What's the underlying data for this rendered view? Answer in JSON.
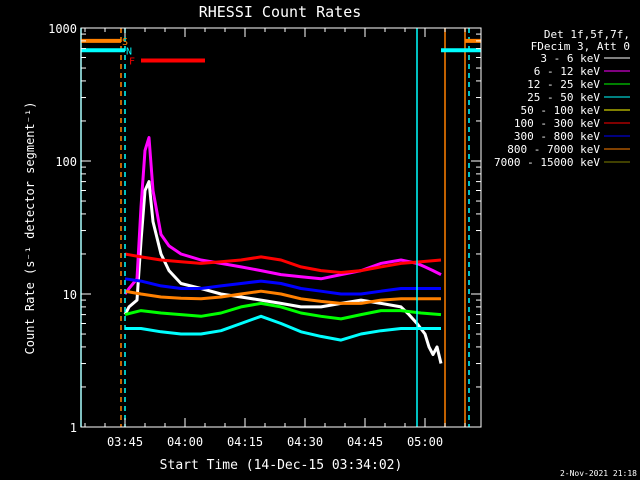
{
  "chart_data": {
    "type": "line",
    "title": "RHESSI Count Rates",
    "xlabel": "Start Time (14-Dec-15 03:34:02)",
    "ylabel": "Count Rate (s⁻¹ detector segment⁻¹)",
    "ylog": true,
    "ylim": [
      1,
      1000
    ],
    "xlim_minutes": [
      0,
      100
    ],
    "y_ticks": [
      "1",
      "10",
      "100",
      "1000"
    ],
    "x_ticks": [
      {
        "min": 11,
        "label": "03:45"
      },
      {
        "min": 26,
        "label": "04:00"
      },
      {
        "min": 41,
        "label": "04:15"
      },
      {
        "min": 56,
        "label": "04:30"
      },
      {
        "min": 71,
        "label": "04:45"
      },
      {
        "min": 86,
        "label": "05:00"
      }
    ],
    "legend_header": [
      "Det 1f,5f,7f,",
      "FDecim 3, Att 0"
    ],
    "series": [
      {
        "name": "3 - 6 keV",
        "color": "#ffffff",
        "x": [
          11,
          12,
          14,
          15,
          16,
          17,
          18,
          20,
          22,
          25,
          30,
          35,
          40,
          45,
          50,
          55,
          60,
          65,
          70,
          75,
          80,
          82,
          84,
          86,
          87,
          88,
          89,
          90
        ],
        "y": [
          7,
          8,
          9,
          25,
          60,
          70,
          35,
          20,
          15,
          12,
          11,
          10,
          9.5,
          9,
          8.5,
          8,
          8,
          8.5,
          9,
          8.5,
          8,
          7,
          6,
          5,
          4,
          3.5,
          4,
          3
        ]
      },
      {
        "name": "6 - 12 keV",
        "color": "#ff00ff",
        "x": [
          11,
          12,
          14,
          15,
          16,
          17,
          18,
          20,
          22,
          25,
          30,
          35,
          40,
          45,
          50,
          55,
          60,
          65,
          70,
          75,
          80,
          84,
          86,
          88,
          90
        ],
        "y": [
          10,
          11,
          13,
          45,
          120,
          150,
          60,
          28,
          23,
          20,
          18,
          17,
          16,
          15,
          14,
          13.5,
          13,
          14,
          15,
          17,
          18,
          17,
          16,
          15,
          14
        ]
      },
      {
        "name": "12 - 25 keV",
        "color": "#00ff00",
        "x": [
          11,
          15,
          20,
          25,
          30,
          35,
          40,
          45,
          50,
          55,
          60,
          65,
          70,
          75,
          80,
          85,
          90
        ],
        "y": [
          7,
          7.5,
          7.2,
          7,
          6.8,
          7.2,
          8,
          8.5,
          8,
          7.2,
          6.8,
          6.5,
          7,
          7.5,
          7.5,
          7.2,
          7
        ]
      },
      {
        "name": "25 - 50 keV",
        "color": "#00ffff",
        "x": [
          11,
          15,
          20,
          25,
          30,
          35,
          40,
          45,
          50,
          55,
          60,
          65,
          70,
          75,
          80,
          85,
          90
        ],
        "y": [
          5.5,
          5.5,
          5.2,
          5,
          5,
          5.3,
          6,
          6.8,
          6,
          5.2,
          4.8,
          4.5,
          5,
          5.3,
          5.5,
          5.5,
          5.5
        ]
      },
      {
        "name": "50 - 100 keV",
        "color": "#ffff00",
        "x": [],
        "y": []
      },
      {
        "name": "100 - 300 keV",
        "color": "#ff0000",
        "x": [
          11,
          15,
          20,
          25,
          30,
          35,
          40,
          45,
          50,
          55,
          60,
          65,
          70,
          75,
          80,
          85,
          90
        ],
        "y": [
          20,
          19,
          18,
          17.5,
          17,
          17.5,
          18,
          19,
          18,
          16,
          15,
          14.5,
          15,
          16,
          17,
          17.5,
          18
        ]
      },
      {
        "name": "300 - 800 keV",
        "color": "#0000ff",
        "x": [
          11,
          15,
          20,
          25,
          30,
          35,
          40,
          45,
          50,
          55,
          60,
          65,
          70,
          75,
          80,
          85,
          90
        ],
        "y": [
          13,
          12.5,
          11.5,
          11,
          11,
          11.5,
          12,
          12.5,
          12,
          11,
          10.5,
          10,
          10,
          10.5,
          11,
          11,
          11
        ]
      },
      {
        "name": "800 - 7000 keV",
        "color": "#ff8000",
        "x": [
          11,
          15,
          20,
          25,
          30,
          35,
          40,
          45,
          50,
          55,
          60,
          65,
          70,
          75,
          80,
          85,
          90
        ],
        "y": [
          10.5,
          10,
          9.5,
          9.3,
          9.2,
          9.5,
          10,
          10.5,
          10,
          9.2,
          8.8,
          8.5,
          8.5,
          9,
          9.2,
          9.2,
          9.2
        ]
      },
      {
        "name": "7000 - 15000 keV",
        "color": "#808000",
        "x": [],
        "y": []
      }
    ],
    "markers": [
      {
        "label": "S",
        "color": "#ff8000",
        "y": 800,
        "x_ranges": [
          [
            0,
            10
          ],
          [
            96,
            100
          ]
        ]
      },
      {
        "label": "N",
        "color": "#00ffff",
        "y": 680,
        "x_ranges": [
          [
            0,
            11
          ],
          [
            90,
            100
          ]
        ]
      },
      {
        "label": "F",
        "color": "#ff0000",
        "y": 570,
        "x_ranges": [
          [
            15,
            31
          ]
        ]
      }
    ],
    "vertical_lines": [
      {
        "min": 0,
        "color": "#00ffff",
        "style": "solid"
      },
      {
        "min": 10,
        "color": "#ff8000",
        "style": "dashed"
      },
      {
        "min": 11,
        "color": "#00ffff",
        "style": "dashed"
      },
      {
        "min": 84,
        "color": "#00ffff",
        "style": "solid"
      },
      {
        "min": 91,
        "color": "#ff8000",
        "style": "solid"
      },
      {
        "min": 96,
        "color": "#ff8000",
        "style": "solid"
      },
      {
        "min": 97,
        "color": "#00ffff",
        "style": "dashed"
      }
    ]
  },
  "footer": {
    "timestamp": "2-Nov-2021 21:18"
  }
}
